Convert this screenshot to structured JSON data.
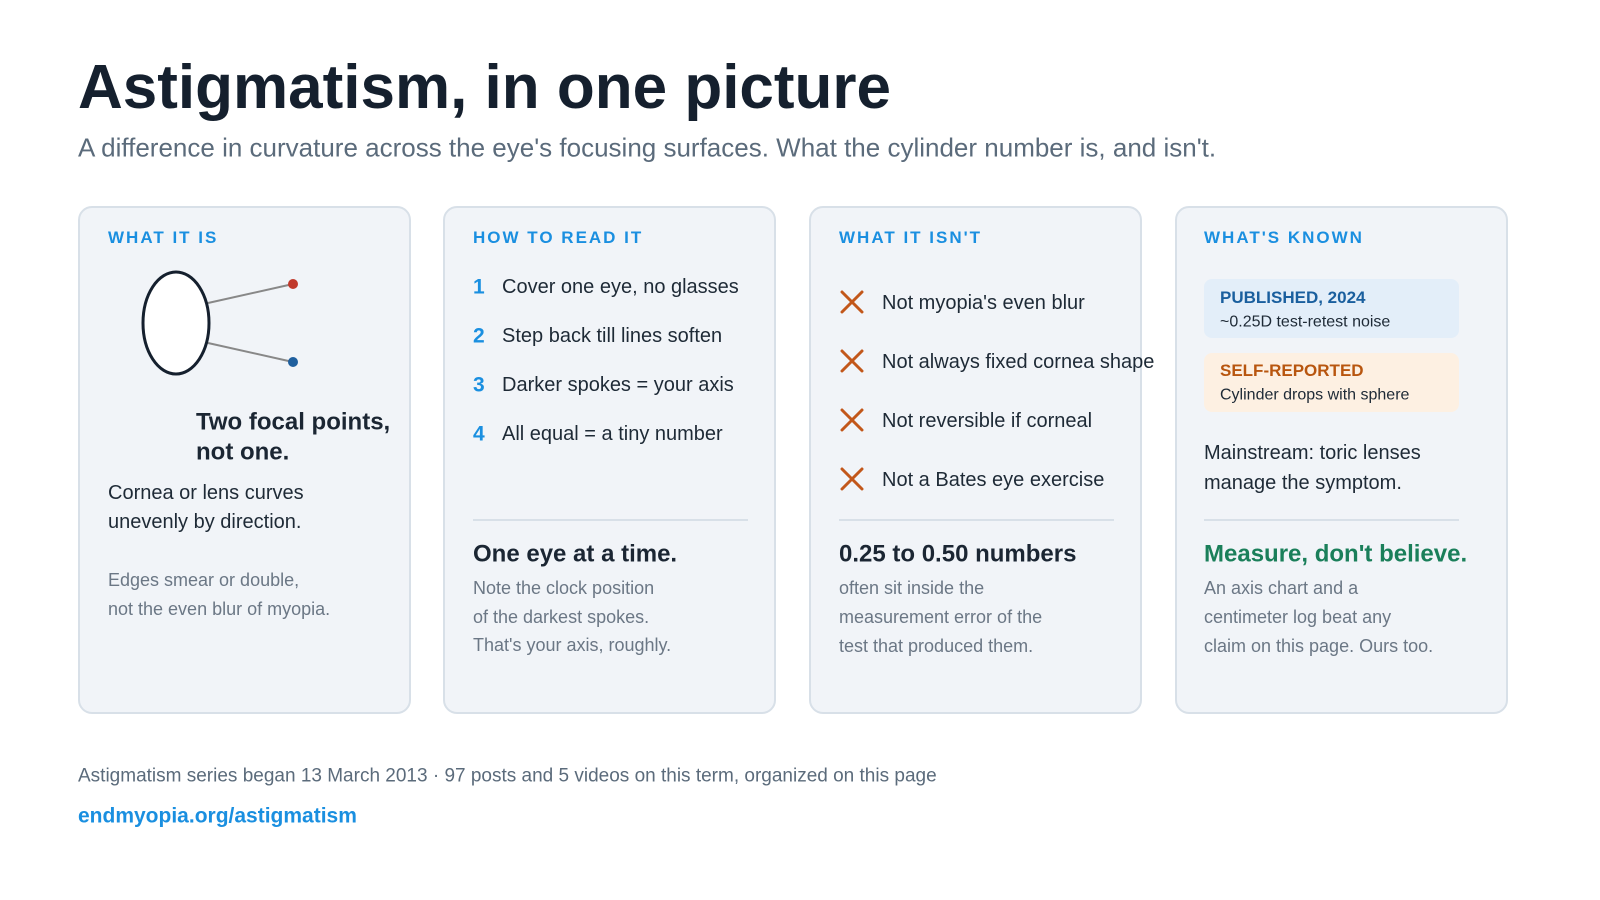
{
  "header": {
    "title": "Astigmatism, in one picture",
    "subtitle": "A difference in curvature across the eye's focusing surfaces. What the cylinder number is, and isn't."
  },
  "cards": [
    {
      "label": "WHAT IT IS",
      "headline": [
        "Two focal points,",
        "not one."
      ],
      "body": [
        "Cornea or lens curves",
        "unevenly by direction."
      ],
      "note": [
        "Edges smear or double,",
        "not the even blur of myopia."
      ]
    },
    {
      "label": "HOW TO READ IT",
      "steps": [
        {
          "number": 1,
          "text": "Cover one eye, no glasses"
        },
        {
          "number": 2,
          "text": "Step back till lines soften"
        },
        {
          "number": 3,
          "text": "Darker spokes = your axis"
        },
        {
          "number": 4,
          "text": "All equal = a tiny number"
        }
      ],
      "headline": "One eye at a time.",
      "note": [
        "Note the clock position",
        "of the darkest spokes.",
        "That's your axis, roughly."
      ]
    },
    {
      "label": "WHAT IT ISN'T",
      "items": [
        "Not myopia's even blur",
        "Not always fixed cornea shape",
        "Not reversible if corneal",
        "Not a Bates eye exercise"
      ],
      "headline": "0.25 to 0.50 numbers",
      "note": [
        "often sit inside the",
        "measurement error of the",
        "test that produced them."
      ]
    },
    {
      "label": "WHAT'S KNOWN",
      "badges": [
        {
          "label": "PUBLISHED, 2024",
          "text": "~0.25D test-retest noise"
        },
        {
          "label": "SELF-REPORTED",
          "text": "Cylinder drops with sphere"
        }
      ],
      "body": [
        "Mainstream: toric lenses",
        "manage the symptom."
      ],
      "headline": "Measure, don't believe.",
      "note": [
        "An axis chart and a",
        "centimeter log beat any",
        "claim on this page. Ours too."
      ]
    }
  ],
  "footer": {
    "note": "Astigmatism series began 13 March 2013 · 97 posts and 5 videos on this term, organized on this page",
    "link": "endmyopia.org/astigmatism"
  }
}
